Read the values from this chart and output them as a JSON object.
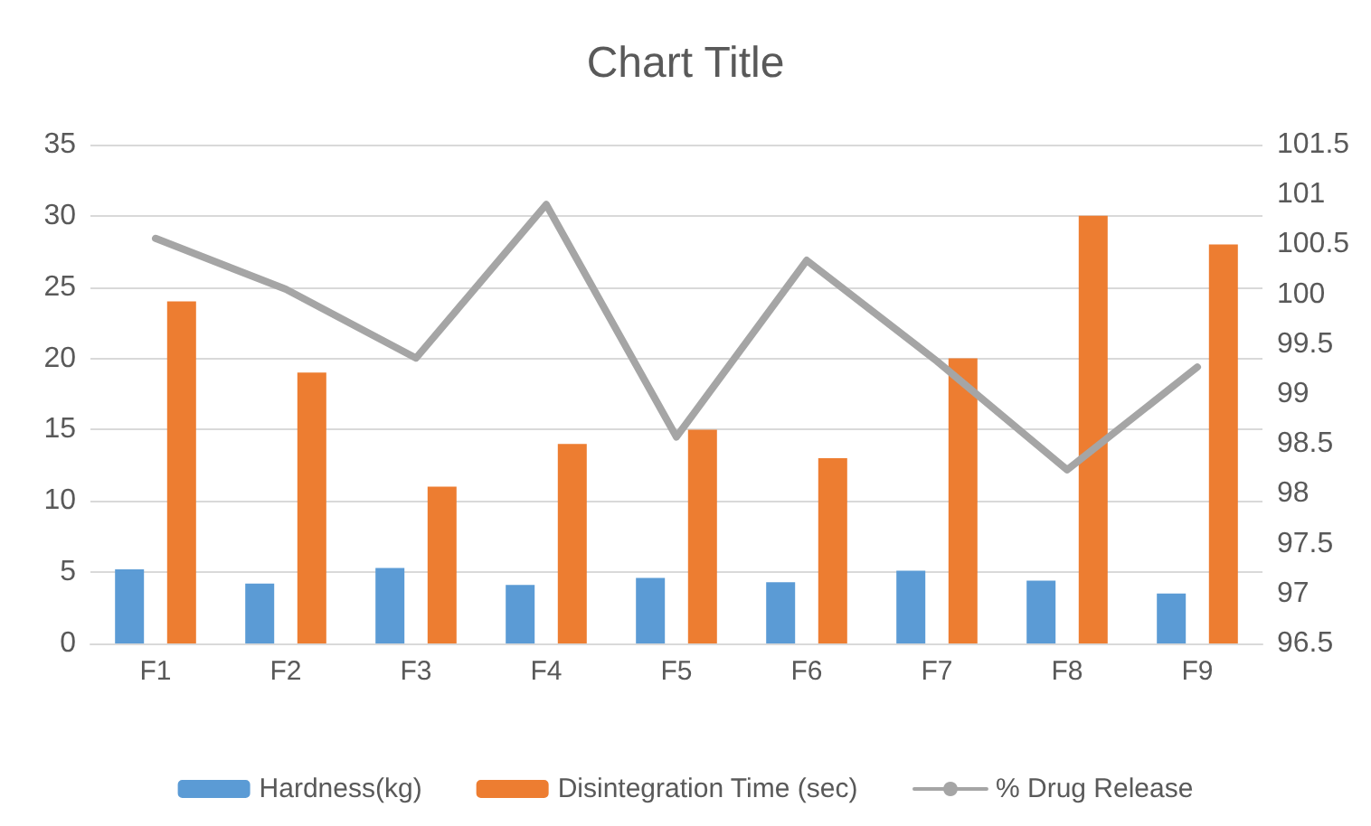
{
  "chart_data": {
    "type": "bar",
    "title": "Chart Title",
    "categories": [
      "F1",
      "F2",
      "F3",
      "F4",
      "F5",
      "F6",
      "F7",
      "F8",
      "F9"
    ],
    "series": [
      {
        "name": "Hardness(kg)",
        "color": "#5b9bd5",
        "values": [
          5.2,
          4.2,
          5.3,
          4.1,
          4.6,
          4.3,
          5.1,
          4.4,
          3.5
        ]
      },
      {
        "name": "Disintegration Time (sec)",
        "color": "#ed7d31",
        "values": [
          24,
          19,
          11,
          14,
          15,
          13,
          20,
          30,
          28
        ]
      },
      {
        "name": "% Drug Release",
        "type": "line",
        "axis": "y2",
        "color": "#a5a5a5",
        "values": [
          100.56,
          100.05,
          99.36,
          100.9,
          98.57,
          100.34,
          99.33,
          98.24,
          99.27
        ]
      }
    ],
    "ylim": [
      0,
      35
    ],
    "yticks": [
      0,
      5,
      10,
      15,
      20,
      25,
      30,
      35
    ],
    "y2lim": [
      96.5,
      101.5
    ],
    "y2ticks": [
      96.5,
      97,
      97.5,
      98,
      98.5,
      99,
      99.5,
      100,
      100.5,
      101,
      101.5
    ],
    "grid": "y",
    "legend": "bottom",
    "marker": "none",
    "line_style": "solid"
  }
}
